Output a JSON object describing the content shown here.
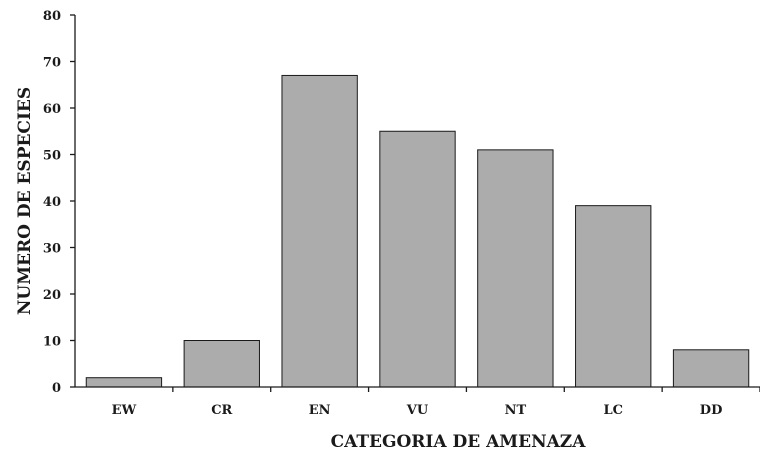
{
  "chart_data": {
    "type": "bar",
    "categories": [
      "EW",
      "CR",
      "EN",
      "VU",
      "NT",
      "LC",
      "DD"
    ],
    "values": [
      2,
      10,
      67,
      55,
      51,
      39,
      8
    ],
    "xlabel": "CATEGORIA DE AMENAZA",
    "ylabel": "NUMERO DE ESPECIES",
    "ylim": [
      0,
      80
    ],
    "yticks": [
      0,
      10,
      20,
      30,
      40,
      50,
      60,
      70,
      80
    ],
    "grid": false,
    "bar_color": "#acacac"
  }
}
